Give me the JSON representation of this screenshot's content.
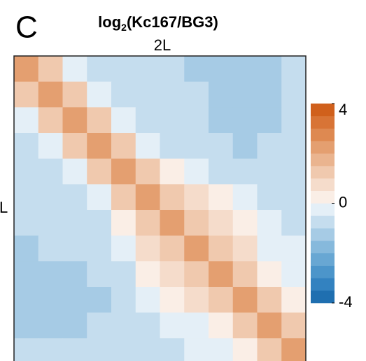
{
  "panel_label": "C",
  "chart_data": {
    "type": "heatmap",
    "title": {
      "base": "log",
      "subscript": "2",
      "rest": "(Kc167/BG3)"
    },
    "x_label": "2L",
    "y_label": "L",
    "z": [
      [
        2,
        1,
        -0.5,
        -0.8,
        -1,
        -1,
        -1,
        -1.2,
        -1.5,
        -1.5,
        -1.2,
        -0.8
      ],
      [
        1,
        2,
        1,
        -0.5,
        -0.8,
        -1,
        -1,
        -1,
        -1.5,
        -1.5,
        -1.2,
        -0.8
      ],
      [
        -0.5,
        1,
        2,
        1,
        -0.3,
        -0.8,
        -0.8,
        -1,
        -1.2,
        -1.5,
        -1.2,
        -0.8
      ],
      [
        -0.8,
        -0.5,
        1,
        2,
        1,
        -0.5,
        -0.8,
        -0.8,
        -1,
        -1.2,
        -1,
        -0.8
      ],
      [
        -1,
        -0.8,
        -0.3,
        1,
        2,
        1,
        0.3,
        -0.5,
        -0.8,
        -1,
        -1,
        -0.8
      ],
      [
        -1,
        -1,
        -0.8,
        -0.5,
        1,
        2,
        1.2,
        0.8,
        0.3,
        -0.5,
        -0.8,
        -0.8
      ],
      [
        -1,
        -1,
        -0.8,
        -0.8,
        0.3,
        1.2,
        2,
        1.2,
        0.8,
        0.3,
        -0.5,
        -0.8
      ],
      [
        -1.2,
        -1,
        -1,
        -0.8,
        -0.5,
        0.8,
        1.2,
        2,
        1.2,
        0.5,
        -0.3,
        -0.5
      ],
      [
        -1.5,
        -1.5,
        -1.2,
        -1,
        -0.8,
        0.3,
        0.8,
        1.2,
        2,
        1,
        0.3,
        -0.3
      ],
      [
        -1.5,
        -1.5,
        -1.5,
        -1.2,
        -1,
        -0.5,
        0.3,
        0.5,
        1,
        2,
        1,
        0.3
      ],
      [
        -1.2,
        -1.2,
        -1.2,
        -1,
        -1,
        -0.8,
        -0.5,
        -0.3,
        0.3,
        1,
        2,
        1
      ],
      [
        -0.8,
        -0.8,
        -0.8,
        -0.8,
        -0.8,
        -0.8,
        -0.8,
        -0.5,
        -0.3,
        0.3,
        1,
        2
      ]
    ],
    "colorbar": {
      "lim": [
        -4,
        4
      ],
      "ticks": [
        -4,
        0,
        4
      ],
      "colors": [
        "#1f6fb0",
        "#3382c0",
        "#4c95ca",
        "#68a7d3",
        "#86b9dc",
        "#a6cbe5",
        "#c5ddee",
        "#e4eff7",
        "#faeee6",
        "#f5dccb",
        "#f0c9ae",
        "#eab48f",
        "#e49f70",
        "#de8951",
        "#d87436",
        "#d0601c"
      ]
    }
  }
}
